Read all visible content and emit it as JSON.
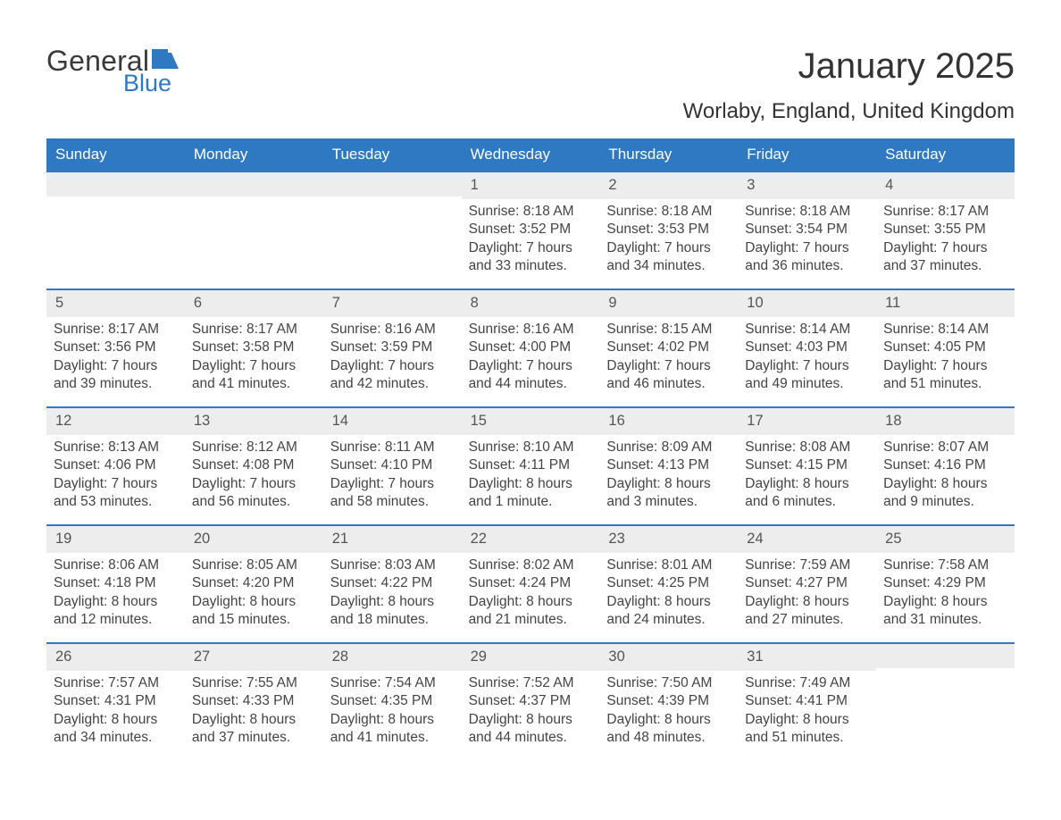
{
  "brand": {
    "general": "General",
    "blue": "Blue",
    "flag_color": "#2f79c2"
  },
  "header": {
    "title": "January 2025",
    "location": "Worlaby, England, United Kingdom"
  },
  "style": {
    "header_bg": "#2f79c2",
    "header_text": "#ffffff",
    "cell_border_top": "#2f79c2",
    "daynum_bg": "#ededed",
    "body_text": "#444444",
    "title_fontsize": 40,
    "location_fontsize": 24,
    "dayhead_fontsize": 17,
    "cell_fontsize": 15.5
  },
  "day_names": [
    "Sunday",
    "Monday",
    "Tuesday",
    "Wednesday",
    "Thursday",
    "Friday",
    "Saturday"
  ],
  "weeks": [
    [
      {
        "empty": true
      },
      {
        "empty": true
      },
      {
        "empty": true
      },
      {
        "day": "1",
        "sunrise": "Sunrise: 8:18 AM",
        "sunset": "Sunset: 3:52 PM",
        "d1": "Daylight: 7 hours",
        "d2": "and 33 minutes."
      },
      {
        "day": "2",
        "sunrise": "Sunrise: 8:18 AM",
        "sunset": "Sunset: 3:53 PM",
        "d1": "Daylight: 7 hours",
        "d2": "and 34 minutes."
      },
      {
        "day": "3",
        "sunrise": "Sunrise: 8:18 AM",
        "sunset": "Sunset: 3:54 PM",
        "d1": "Daylight: 7 hours",
        "d2": "and 36 minutes."
      },
      {
        "day": "4",
        "sunrise": "Sunrise: 8:17 AM",
        "sunset": "Sunset: 3:55 PM",
        "d1": "Daylight: 7 hours",
        "d2": "and 37 minutes."
      }
    ],
    [
      {
        "day": "5",
        "sunrise": "Sunrise: 8:17 AM",
        "sunset": "Sunset: 3:56 PM",
        "d1": "Daylight: 7 hours",
        "d2": "and 39 minutes."
      },
      {
        "day": "6",
        "sunrise": "Sunrise: 8:17 AM",
        "sunset": "Sunset: 3:58 PM",
        "d1": "Daylight: 7 hours",
        "d2": "and 41 minutes."
      },
      {
        "day": "7",
        "sunrise": "Sunrise: 8:16 AM",
        "sunset": "Sunset: 3:59 PM",
        "d1": "Daylight: 7 hours",
        "d2": "and 42 minutes."
      },
      {
        "day": "8",
        "sunrise": "Sunrise: 8:16 AM",
        "sunset": "Sunset: 4:00 PM",
        "d1": "Daylight: 7 hours",
        "d2": "and 44 minutes."
      },
      {
        "day": "9",
        "sunrise": "Sunrise: 8:15 AM",
        "sunset": "Sunset: 4:02 PM",
        "d1": "Daylight: 7 hours",
        "d2": "and 46 minutes."
      },
      {
        "day": "10",
        "sunrise": "Sunrise: 8:14 AM",
        "sunset": "Sunset: 4:03 PM",
        "d1": "Daylight: 7 hours",
        "d2": "and 49 minutes."
      },
      {
        "day": "11",
        "sunrise": "Sunrise: 8:14 AM",
        "sunset": "Sunset: 4:05 PM",
        "d1": "Daylight: 7 hours",
        "d2": "and 51 minutes."
      }
    ],
    [
      {
        "day": "12",
        "sunrise": "Sunrise: 8:13 AM",
        "sunset": "Sunset: 4:06 PM",
        "d1": "Daylight: 7 hours",
        "d2": "and 53 minutes."
      },
      {
        "day": "13",
        "sunrise": "Sunrise: 8:12 AM",
        "sunset": "Sunset: 4:08 PM",
        "d1": "Daylight: 7 hours",
        "d2": "and 56 minutes."
      },
      {
        "day": "14",
        "sunrise": "Sunrise: 8:11 AM",
        "sunset": "Sunset: 4:10 PM",
        "d1": "Daylight: 7 hours",
        "d2": "and 58 minutes."
      },
      {
        "day": "15",
        "sunrise": "Sunrise: 8:10 AM",
        "sunset": "Sunset: 4:11 PM",
        "d1": "Daylight: 8 hours",
        "d2": "and 1 minute."
      },
      {
        "day": "16",
        "sunrise": "Sunrise: 8:09 AM",
        "sunset": "Sunset: 4:13 PM",
        "d1": "Daylight: 8 hours",
        "d2": "and 3 minutes."
      },
      {
        "day": "17",
        "sunrise": "Sunrise: 8:08 AM",
        "sunset": "Sunset: 4:15 PM",
        "d1": "Daylight: 8 hours",
        "d2": "and 6 minutes."
      },
      {
        "day": "18",
        "sunrise": "Sunrise: 8:07 AM",
        "sunset": "Sunset: 4:16 PM",
        "d1": "Daylight: 8 hours",
        "d2": "and 9 minutes."
      }
    ],
    [
      {
        "day": "19",
        "sunrise": "Sunrise: 8:06 AM",
        "sunset": "Sunset: 4:18 PM",
        "d1": "Daylight: 8 hours",
        "d2": "and 12 minutes."
      },
      {
        "day": "20",
        "sunrise": "Sunrise: 8:05 AM",
        "sunset": "Sunset: 4:20 PM",
        "d1": "Daylight: 8 hours",
        "d2": "and 15 minutes."
      },
      {
        "day": "21",
        "sunrise": "Sunrise: 8:03 AM",
        "sunset": "Sunset: 4:22 PM",
        "d1": "Daylight: 8 hours",
        "d2": "and 18 minutes."
      },
      {
        "day": "22",
        "sunrise": "Sunrise: 8:02 AM",
        "sunset": "Sunset: 4:24 PM",
        "d1": "Daylight: 8 hours",
        "d2": "and 21 minutes."
      },
      {
        "day": "23",
        "sunrise": "Sunrise: 8:01 AM",
        "sunset": "Sunset: 4:25 PM",
        "d1": "Daylight: 8 hours",
        "d2": "and 24 minutes."
      },
      {
        "day": "24",
        "sunrise": "Sunrise: 7:59 AM",
        "sunset": "Sunset: 4:27 PM",
        "d1": "Daylight: 8 hours",
        "d2": "and 27 minutes."
      },
      {
        "day": "25",
        "sunrise": "Sunrise: 7:58 AM",
        "sunset": "Sunset: 4:29 PM",
        "d1": "Daylight: 8 hours",
        "d2": "and 31 minutes."
      }
    ],
    [
      {
        "day": "26",
        "sunrise": "Sunrise: 7:57 AM",
        "sunset": "Sunset: 4:31 PM",
        "d1": "Daylight: 8 hours",
        "d2": "and 34 minutes."
      },
      {
        "day": "27",
        "sunrise": "Sunrise: 7:55 AM",
        "sunset": "Sunset: 4:33 PM",
        "d1": "Daylight: 8 hours",
        "d2": "and 37 minutes."
      },
      {
        "day": "28",
        "sunrise": "Sunrise: 7:54 AM",
        "sunset": "Sunset: 4:35 PM",
        "d1": "Daylight: 8 hours",
        "d2": "and 41 minutes."
      },
      {
        "day": "29",
        "sunrise": "Sunrise: 7:52 AM",
        "sunset": "Sunset: 4:37 PM",
        "d1": "Daylight: 8 hours",
        "d2": "and 44 minutes."
      },
      {
        "day": "30",
        "sunrise": "Sunrise: 7:50 AM",
        "sunset": "Sunset: 4:39 PM",
        "d1": "Daylight: 8 hours",
        "d2": "and 48 minutes."
      },
      {
        "day": "31",
        "sunrise": "Sunrise: 7:49 AM",
        "sunset": "Sunset: 4:41 PM",
        "d1": "Daylight: 8 hours",
        "d2": "and 51 minutes."
      },
      {
        "empty": true
      }
    ]
  ]
}
